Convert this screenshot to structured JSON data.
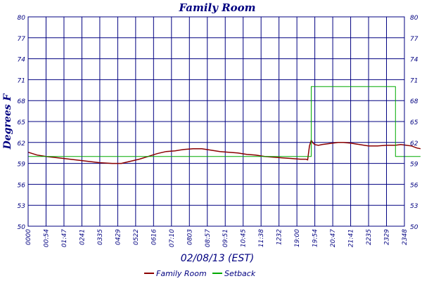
{
  "chart_data": {
    "type": "line",
    "title": "Family Room",
    "xlabel": "02/08/13 (EST)",
    "ylabel": "Degrees F",
    "ylim": [
      50,
      80
    ],
    "y_ticks": [
      "50",
      "53",
      "56",
      "59",
      "62",
      "65",
      "68",
      "71",
      "74",
      "77",
      "80"
    ],
    "x_tick_labels": [
      "0000",
      "00:54",
      "01:47",
      "0241",
      "0335",
      "0429",
      "0522",
      "0616",
      "07:10",
      "0803",
      "08:57",
      "09:51",
      "10:45",
      "11:38",
      "1232",
      "19:00",
      "19:54",
      "20:47",
      "21:41",
      "2235",
      "2329",
      "2348"
    ],
    "grid": true,
    "legend_position": "bottom-center",
    "series": [
      {
        "name": "Family Room",
        "color": "#8b0000",
        "points": [
          [
            0,
            60.6
          ],
          [
            5,
            60.2
          ],
          [
            10,
            60.0
          ],
          [
            20,
            59.7
          ],
          [
            30,
            59.4
          ],
          [
            40,
            59.1
          ],
          [
            47,
            59.0
          ],
          [
            52,
            59.0
          ],
          [
            57,
            59.3
          ],
          [
            62,
            59.6
          ],
          [
            67,
            60.0
          ],
          [
            72,
            60.4
          ],
          [
            77,
            60.7
          ],
          [
            82,
            60.8
          ],
          [
            87,
            61.0
          ],
          [
            92,
            61.1
          ],
          [
            97,
            61.1
          ],
          [
            102,
            60.9
          ],
          [
            107,
            60.7
          ],
          [
            112,
            60.6
          ],
          [
            117,
            60.5
          ],
          [
            122,
            60.3
          ],
          [
            127,
            60.2
          ],
          [
            132,
            60.0
          ],
          [
            137,
            59.9
          ],
          [
            142,
            59.8
          ],
          [
            147,
            59.7
          ],
          [
            152,
            59.6
          ],
          [
            155,
            59.6
          ],
          [
            156,
            59.5
          ],
          [
            157,
            61.5
          ],
          [
            158,
            62.3
          ],
          [
            159,
            61.9
          ],
          [
            160,
            61.7
          ],
          [
            162,
            61.6
          ],
          [
            164,
            61.7
          ],
          [
            167,
            61.8
          ],
          [
            170,
            61.9
          ],
          [
            173,
            62.0
          ],
          [
            176,
            62.0
          ],
          [
            180,
            61.9
          ],
          [
            185,
            61.7
          ],
          [
            190,
            61.5
          ],
          [
            195,
            61.5
          ],
          [
            200,
            61.6
          ],
          [
            205,
            61.6
          ],
          [
            208,
            61.7
          ],
          [
            211,
            61.6
          ],
          [
            214,
            61.5
          ],
          [
            217,
            61.2
          ],
          [
            219,
            61.1
          ]
        ]
      },
      {
        "name": "Setback",
        "color": "#00aa00",
        "points": [
          [
            0,
            60.0
          ],
          [
            158,
            60.0
          ],
          [
            158,
            70.0
          ],
          [
            205,
            70.0
          ],
          [
            205,
            60.0
          ],
          [
            219,
            60.0
          ]
        ]
      }
    ]
  }
}
